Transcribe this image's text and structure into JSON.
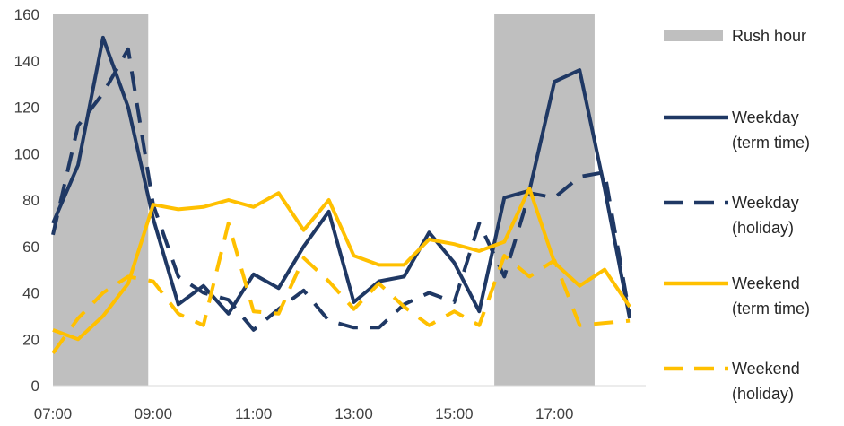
{
  "chart_data": {
    "type": "line",
    "title": "",
    "xlabel": "",
    "ylabel": "",
    "ylim": [
      0,
      160
    ],
    "y_ticks": [
      0,
      20,
      40,
      60,
      80,
      100,
      120,
      140,
      160
    ],
    "x_hours": [
      7,
      7.5,
      8,
      8.5,
      9,
      9.5,
      10,
      10.5,
      11,
      11.5,
      12,
      12.5,
      13,
      13.5,
      14,
      14.5,
      15,
      15.5,
      16,
      16.5,
      17,
      17.5,
      18,
      18.5
    ],
    "x_tick_hours": [
      7,
      9,
      11,
      13,
      15,
      17
    ],
    "x_tick_labels": [
      "07:00",
      "09:00",
      "11:00",
      "13:00",
      "15:00",
      "17:00"
    ],
    "grid": false,
    "legend_position": "right",
    "shaded_regions": {
      "label": "Rush hour",
      "color": "#BFBFBF",
      "ranges": [
        [
          7,
          8.9
        ],
        [
          15.8,
          17.8
        ]
      ]
    },
    "series": [
      {
        "name": "Weekday\n(term time)",
        "color": "#1F3864",
        "dash": "solid",
        "values": [
          70,
          95,
          150,
          120,
          72,
          35,
          43,
          31,
          48,
          42,
          60,
          75,
          36,
          45,
          47,
          66,
          53,
          32,
          81,
          84,
          131,
          136,
          85,
          29
        ]
      },
      {
        "name": " Weekday\n(holiday)",
        "color": "#1F3864",
        "dash": "dashed",
        "values": [
          65,
          112,
          126,
          145,
          78,
          47,
          40,
          37,
          24,
          33,
          41,
          28,
          25,
          25,
          35,
          40,
          36,
          70,
          47,
          83,
          81,
          90,
          92,
          30
        ]
      },
      {
        "name": "Weekend\n(term time)",
        "color": "#FFC000",
        "dash": "solid",
        "values": [
          24,
          20,
          30,
          44,
          78,
          76,
          77,
          80,
          77,
          83,
          67,
          80,
          56,
          52,
          52,
          63,
          61,
          58,
          62,
          85,
          53,
          43,
          50,
          34
        ]
      },
      {
        "name": "Weekend\n(holiday)",
        "color": "#FFC000",
        "dash": "dashed",
        "values": [
          14,
          29,
          40,
          47,
          45,
          31,
          26,
          70,
          32,
          31,
          55,
          45,
          33,
          44,
          34,
          26,
          32,
          26,
          56,
          47,
          54,
          26,
          27,
          28
        ]
      }
    ]
  }
}
